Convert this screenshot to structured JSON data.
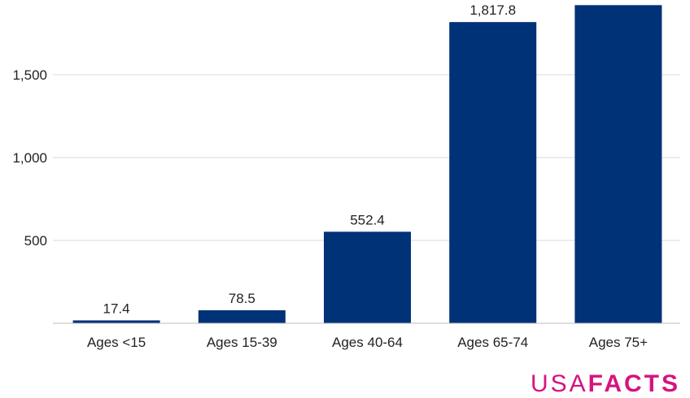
{
  "chart_data": {
    "type": "bar",
    "categories": [
      "Ages <15",
      "Ages 15-39",
      "Ages 40-64",
      "Ages 65-74",
      "Ages 75+"
    ],
    "values": [
      17.4,
      78.5,
      552.4,
      1817.8,
      1920
    ],
    "value_labels": [
      "17.4",
      "78.5",
      "552.4",
      "1,817.8",
      ""
    ],
    "yticks": [
      500,
      1000,
      1500
    ],
    "ytick_labels": [
      "500",
      "1,000",
      "1,500"
    ],
    "ylim": [
      0,
      1950
    ],
    "grid": true,
    "colors": {
      "bar": "#003278"
    }
  },
  "branding": {
    "usa": "USA",
    "facts": "FACTS",
    "color": "#d6137f"
  }
}
